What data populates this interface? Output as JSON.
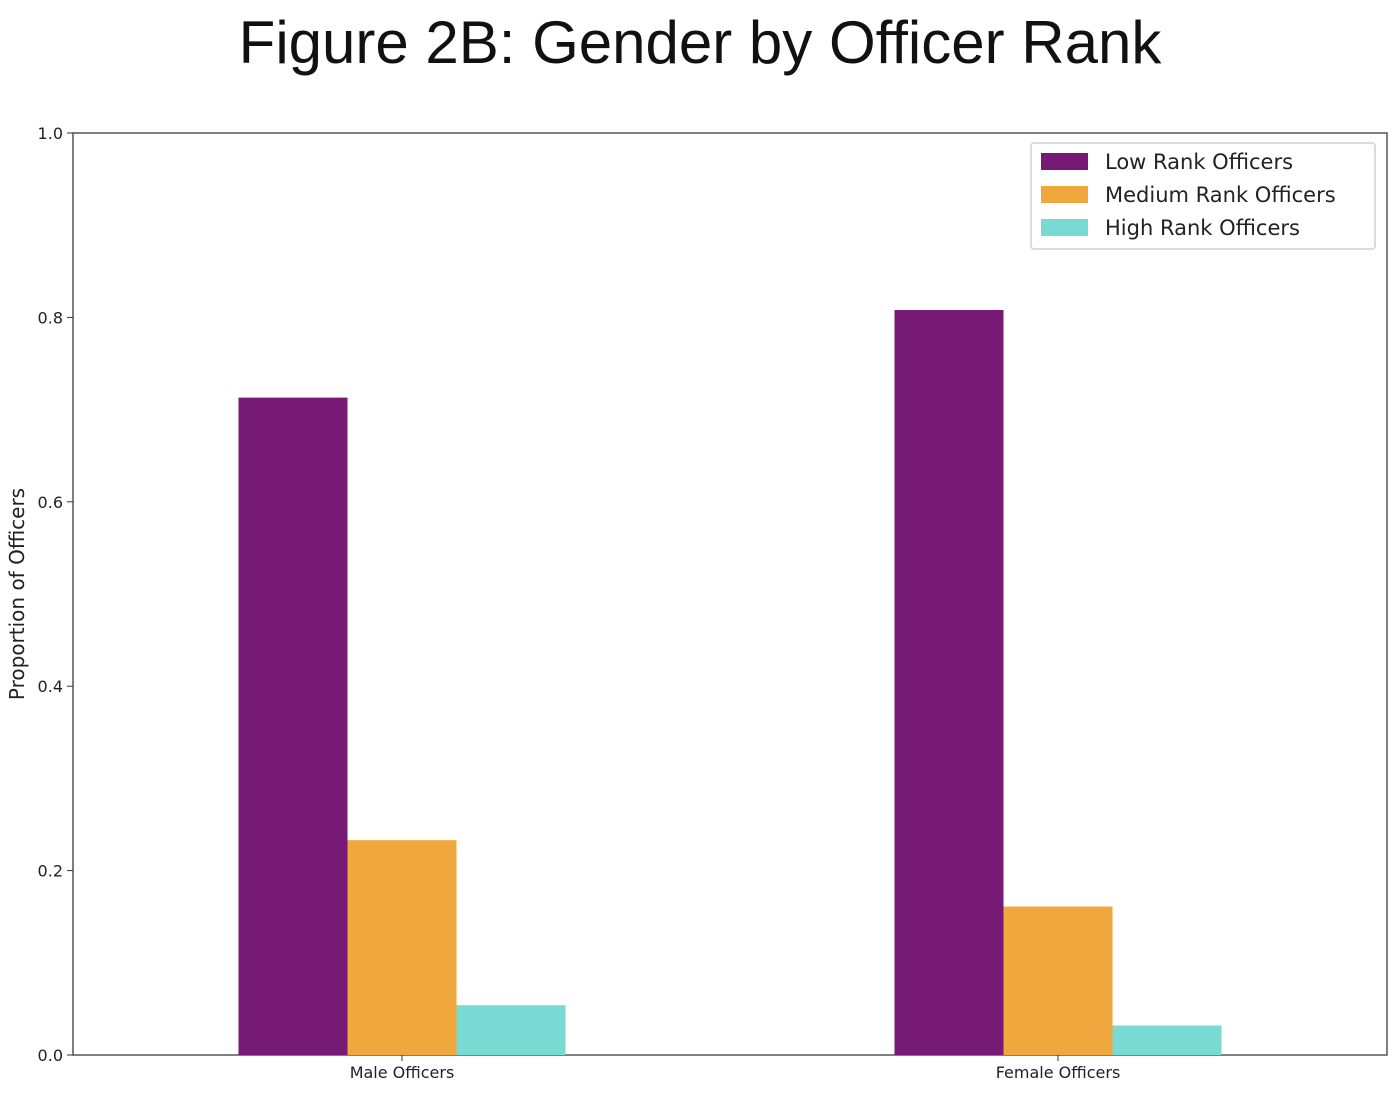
{
  "chart_data": {
    "type": "bar",
    "title": "Figure 2B: Gender by Officer Rank",
    "xlabel": "",
    "ylabel": "Proportion of Officers",
    "categories": [
      "Male Officers",
      "Female Officers"
    ],
    "series": [
      {
        "name": "Low Rank Officers",
        "values": [
          0.713,
          0.808
        ],
        "color": "#761a75"
      },
      {
        "name": "Medium Rank Officers",
        "values": [
          0.233,
          0.161
        ],
        "color": "#f0a73d"
      },
      {
        "name": "High Rank Officers",
        "values": [
          0.054,
          0.032
        ],
        "color": "#79d9d3"
      }
    ],
    "ylim": [
      0,
      1.0
    ],
    "yticks": [
      "0.0",
      "0.2",
      "0.4",
      "0.6",
      "0.8",
      "1.0"
    ],
    "grid": false,
    "legend_position": "top-right"
  }
}
